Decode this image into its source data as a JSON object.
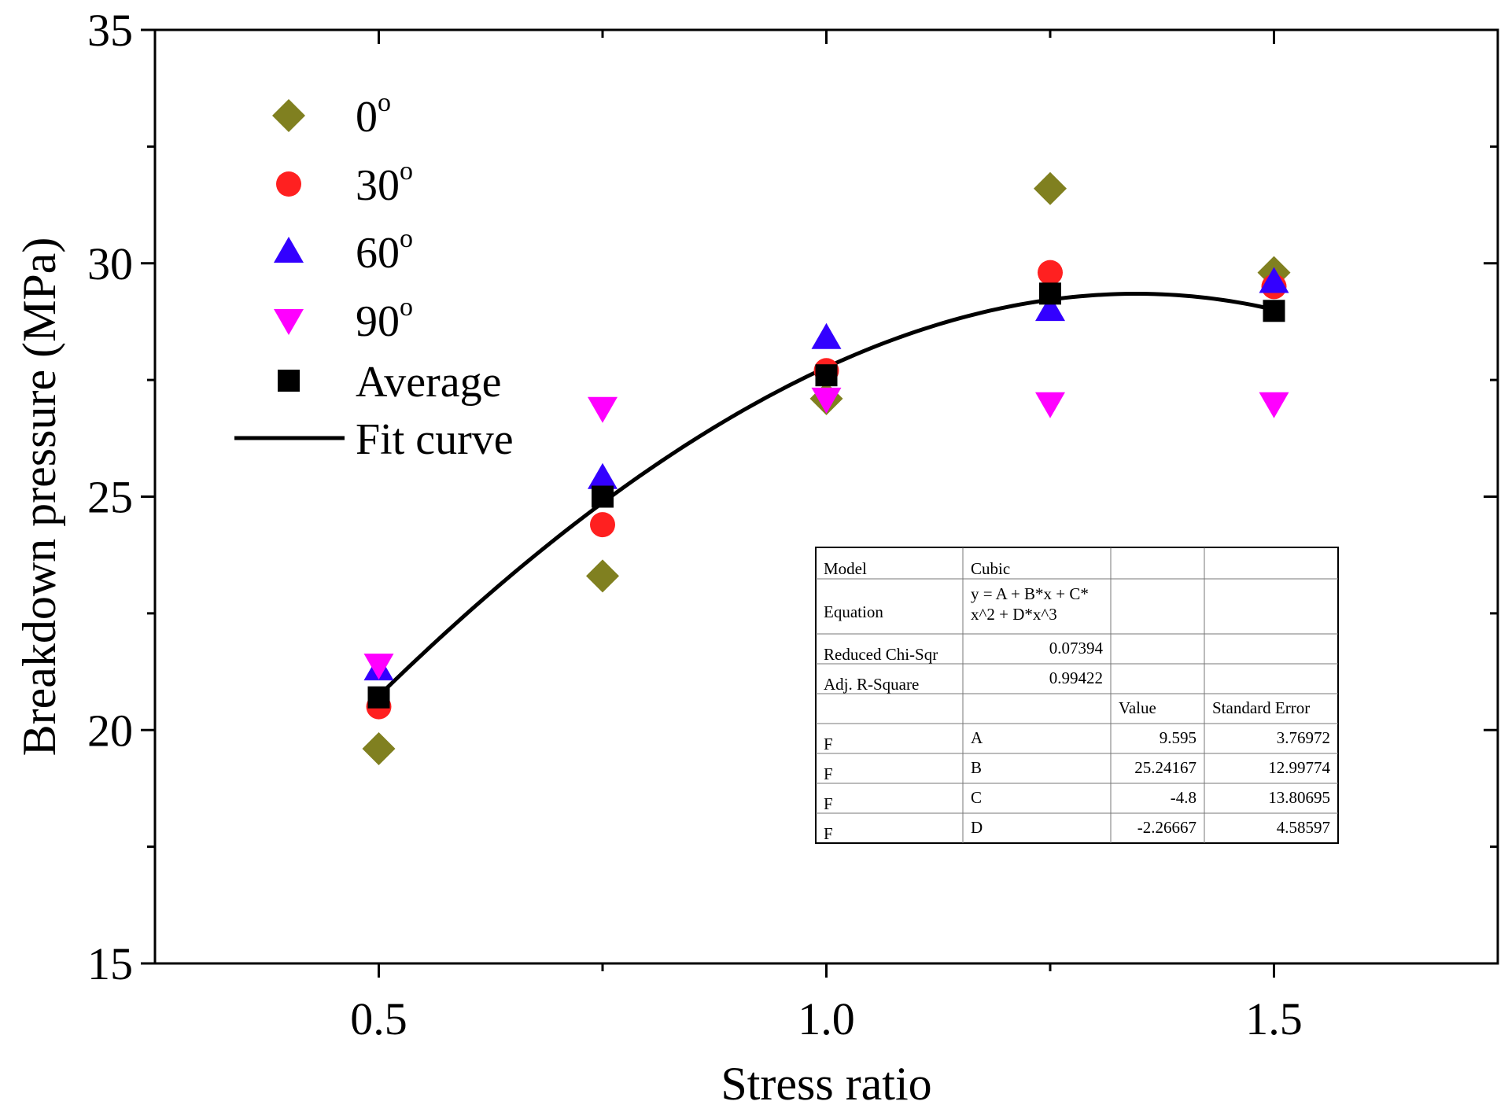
{
  "chart_data": {
    "type": "scatter",
    "title": "",
    "xlabel": "Stress ratio",
    "ylabel": "Breakdown pressure (MPa)",
    "xlim": [
      0.25,
      1.75
    ],
    "ylim": [
      15,
      35
    ],
    "xticks": [
      0.5,
      1.0,
      1.5
    ],
    "xtick_labels": [
      "0.5",
      "1.0",
      "1.5"
    ],
    "yticks": [
      15,
      20,
      25,
      30,
      35
    ],
    "ytick_labels": [
      "15",
      "20",
      "25",
      "30",
      "35"
    ],
    "grid": false,
    "legend_position": "top-left",
    "series": [
      {
        "name": "0",
        "name_sup": "o",
        "marker": "diamond",
        "color": "#808020",
        "x": [
          0.5,
          0.75,
          1.0,
          1.25,
          1.5
        ],
        "y": [
          19.6,
          23.3,
          27.1,
          31.6,
          29.8
        ]
      },
      {
        "name": "30",
        "name_sup": "o",
        "marker": "circle",
        "color": "#ff2020",
        "x": [
          0.5,
          0.75,
          1.0,
          1.25,
          1.5
        ],
        "y": [
          20.5,
          24.4,
          27.7,
          29.8,
          29.5
        ]
      },
      {
        "name": "60",
        "name_sup": "o",
        "marker": "triangle-up",
        "color": "#3300ff",
        "x": [
          0.5,
          0.75,
          1.0,
          1.25,
          1.5
        ],
        "y": [
          21.3,
          25.4,
          28.4,
          29.0,
          29.6
        ]
      },
      {
        "name": "90",
        "name_sup": "o",
        "marker": "triangle-down",
        "color": "#ff00ff",
        "x": [
          0.5,
          0.75,
          1.0,
          1.25,
          1.5
        ],
        "y": [
          21.4,
          26.9,
          27.1,
          27.0,
          27.0
        ]
      },
      {
        "name": "Average",
        "name_sup": "",
        "marker": "square",
        "color": "#000000",
        "x": [
          0.5,
          0.75,
          1.0,
          1.25,
          1.5
        ],
        "y": [
          20.7,
          25.0,
          27.6,
          29.35,
          28.98
        ]
      }
    ],
    "fit": {
      "name": "Fit curve",
      "color": "#000000",
      "x_range": [
        0.5,
        1.5
      ],
      "coefficients": {
        "A": 9.595,
        "B": 25.24167,
        "C": -4.8,
        "D": -2.26667
      }
    },
    "fit_table": {
      "rows": [
        [
          "Model",
          "Cubic",
          "",
          ""
        ],
        [
          "Equation",
          "y = A + B*x + C*\nx^2 + D*x^3",
          "",
          ""
        ],
        [
          "Reduced Chi-Sqr",
          "0.07394",
          "",
          ""
        ],
        [
          "Adj. R-Square",
          "0.99422",
          "",
          ""
        ],
        [
          "",
          "",
          "Value",
          "Standard Error"
        ],
        [
          "F",
          "A",
          "9.595",
          "3.76972"
        ],
        [
          "F",
          "B",
          "25.24167",
          "12.99774"
        ],
        [
          "F",
          "C",
          "-4.8",
          "13.80695"
        ],
        [
          "F",
          "D",
          "-2.26667",
          "4.58597"
        ]
      ]
    }
  }
}
